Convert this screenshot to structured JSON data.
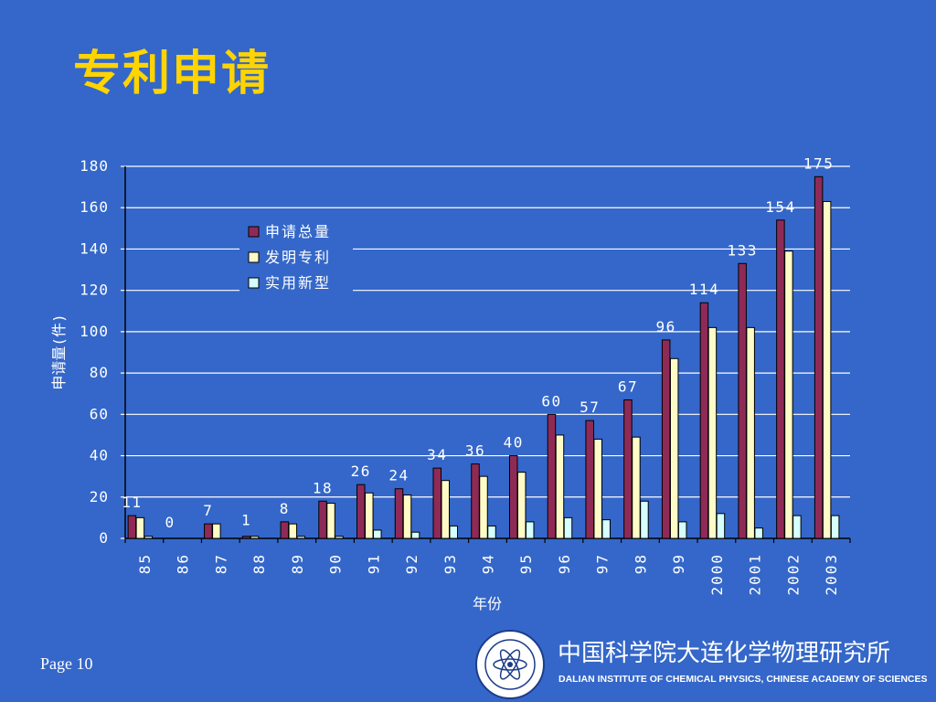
{
  "slide": {
    "title": "专利申请",
    "page_label": "Page 10",
    "institute_cn": "中国科学院大连化学物理研究所",
    "institute_en": "DALIAN INSTITUTE OF CHEMICAL PHYSICS, CHINESE ACADEMY OF SCIENCES",
    "logo_icon": "dicp-seal-logo-icon"
  },
  "colors": {
    "background": "#3467c9",
    "title": "#ffd400",
    "axis_text": "#ffffff",
    "series": [
      "#8f2a56",
      "#fffbc7",
      "#d5ffff"
    ]
  },
  "chart_data": {
    "type": "bar",
    "title": "",
    "xlabel": "年份",
    "ylabel": "申请量(件)",
    "ylim": [
      0,
      180
    ],
    "yticks": [
      0,
      20,
      40,
      60,
      80,
      100,
      120,
      140,
      160,
      180
    ],
    "grid": true,
    "legend_position": "top-left",
    "categories": [
      "85",
      "86",
      "87",
      "88",
      "89",
      "90",
      "91",
      "92",
      "93",
      "94",
      "95",
      "96",
      "97",
      "98",
      "99",
      "2000",
      "2001",
      "2002",
      "2003"
    ],
    "series": [
      {
        "name": "申请总量",
        "values": [
          11,
          0,
          7,
          1,
          8,
          18,
          26,
          24,
          34,
          36,
          40,
          60,
          57,
          67,
          96,
          114,
          133,
          154,
          175
        ]
      },
      {
        "name": "发明专利",
        "values": [
          10,
          0,
          7,
          1,
          7,
          17,
          22,
          21,
          28,
          30,
          32,
          50,
          48,
          49,
          87,
          102,
          102,
          139,
          163
        ]
      },
      {
        "name": "实用新型",
        "values": [
          1,
          0,
          0,
          0,
          1,
          1,
          4,
          3,
          6,
          6,
          8,
          10,
          9,
          18,
          8,
          12,
          5,
          11,
          11
        ]
      }
    ],
    "data_labels": [
      "11",
      "0",
      "7",
      "1",
      "8",
      "18",
      "26",
      "24",
      "34",
      "36",
      "40",
      "60",
      "57",
      "67",
      "96",
      "114",
      "133",
      "154",
      "175"
    ]
  }
}
